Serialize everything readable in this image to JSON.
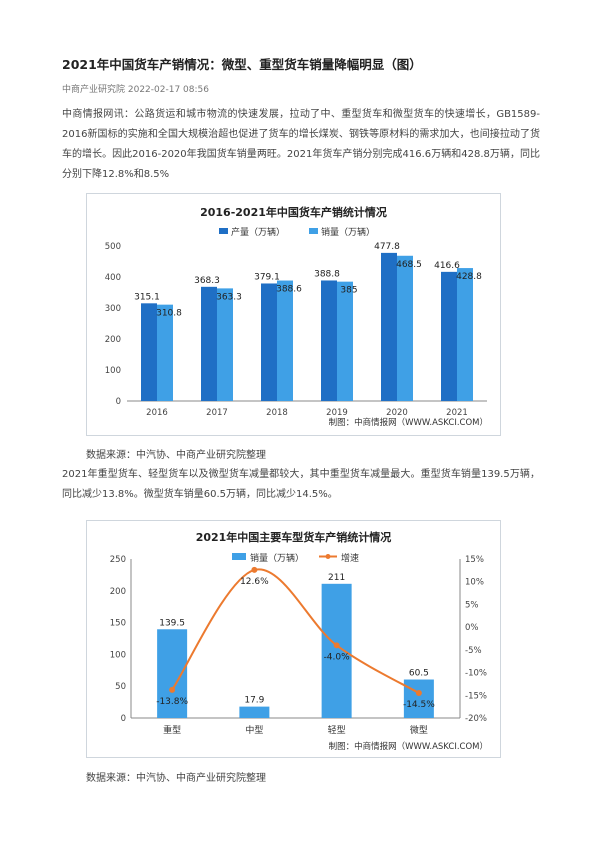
{
  "article": {
    "title": "2021年中国货车产销情况：微型、重型货车销量降幅明显（图）",
    "meta": "中商产业研究院 2022-02-17 08:56",
    "para1": "中商情报网讯：公路货运和城市物流的快速发展，拉动了中、重型货车和微型货车的快速增长，GB1589-2016新国标的实施和全国大规模治超也促进了货车的增长煤炭、钢铁等原材料的需求加大，也间接拉动了货车的增长。因此2016-2020年我国货车销量两旺。2021年货车产销分别完成416.6万辆和428.8万辆，同比分别下降12.8%和8.5%",
    "source1": "数据来源：中汽协、中商产业研究院整理",
    "para2": "2021年重型货车、轻型货车以及微型货车减量都较大，其中重型货车减量最大。重型货车销量139.5万辆，同比减少13.8%。微型货车销量60.5万辆，同比减少14.5%。",
    "source2": "数据来源：中汽协、中商产业研究院整理"
  },
  "colors": {
    "production": "#1f6fc5",
    "sales": "#3fa0e6",
    "growth": "#ec7a2f",
    "axis": "#888888"
  },
  "chart_data": [
    {
      "type": "bar",
      "title": "2016-2021年中国货车产销统计情况",
      "categories": [
        "2016",
        "2017",
        "2018",
        "2019",
        "2020",
        "2021"
      ],
      "series": [
        {
          "name": "产量（万辆）",
          "values": [
            315.1,
            368.3,
            379.1,
            388.8,
            477.8,
            416.6
          ]
        },
        {
          "name": "销量（万辆）",
          "values": [
            310.8,
            363.3,
            388.6,
            385,
            468.5,
            428.8
          ]
        }
      ],
      "ylim": [
        0,
        500
      ],
      "yticks": [
        "0",
        "100",
        "200",
        "300",
        "400",
        "500"
      ],
      "legend": "top",
      "footer": "制图：中商情报网（WWW.ASKCI.COM）"
    },
    {
      "type": "bar",
      "title": "2021年中国主要车型货车产销统计情况",
      "categories": [
        "重型",
        "中型",
        "轻型",
        "微型"
      ],
      "series": [
        {
          "name": "销量（万辆）",
          "values": [
            139.5,
            17.9,
            211,
            60.5
          ]
        },
        {
          "name": "增速",
          "type": "line",
          "axis": "right",
          "values": [
            -13.8,
            12.6,
            -4.0,
            -14.5
          ]
        }
      ],
      "bar_labels": [
        "139.5",
        "17.9",
        "211",
        "60.5"
      ],
      "line_labels": [
        "-13.8%",
        "12.6%",
        "-4.0%",
        "-14.5%"
      ],
      "ylim": [
        0,
        250
      ],
      "yticks": [
        "0",
        "50",
        "100",
        "150",
        "200",
        "250"
      ],
      "y2lim": [
        -20,
        15
      ],
      "y2ticks": [
        "-20%",
        "-15%",
        "-10%",
        "-5%",
        "0%",
        "5%",
        "10%",
        "15%"
      ],
      "legend": "top",
      "footer": "制图：中商情报网（WWW.ASKCI.COM）"
    }
  ]
}
